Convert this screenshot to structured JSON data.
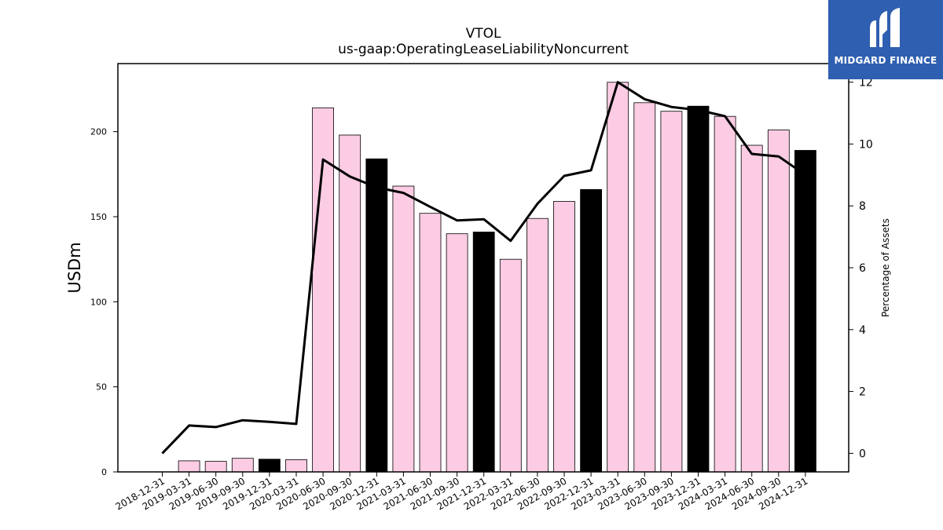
{
  "chart_data": {
    "type": "bar",
    "title": "VTOL",
    "subtitle": "us-gaap:OperatingLeaseLiabilityNoncurrent",
    "ylabel": "USDm",
    "y2label": "Percentage of Assets",
    "ylim": [
      0,
      240
    ],
    "y2lim": [
      -0.6,
      12.6
    ],
    "yticks": [
      0,
      50,
      100,
      150,
      200
    ],
    "y2ticks": [
      0,
      2,
      4,
      6,
      8,
      10,
      12
    ],
    "categories": [
      "2018-12-31",
      "2019-03-31",
      "2019-06-30",
      "2019-09-30",
      "2019-12-31",
      "2020-03-31",
      "2020-06-30",
      "2020-09-30",
      "2020-12-31",
      "2021-03-31",
      "2021-06-30",
      "2021-09-30",
      "2021-12-31",
      "2022-03-31",
      "2022-06-30",
      "2022-09-30",
      "2022-12-31",
      "2023-03-31",
      "2023-06-30",
      "2023-09-30",
      "2023-12-31",
      "2024-03-31",
      "2024-06-30",
      "2024-09-30",
      "2024-12-31"
    ],
    "series": [
      {
        "kind": "bar",
        "values": [
          0,
          6.5,
          6.2,
          8.0,
          7.5,
          7.2,
          214,
          198,
          184,
          168,
          152,
          140,
          141,
          125,
          149,
          159,
          166,
          229,
          217,
          212,
          215,
          209,
          192,
          201,
          189
        ],
        "year_end_color": "#000000",
        "quarter_color": "#fbcce3"
      },
      {
        "kind": "line",
        "axis": "right",
        "color": "#000000",
        "values": [
          0.0,
          0.9,
          0.85,
          1.07,
          1.02,
          0.95,
          9.5,
          8.95,
          8.6,
          8.42,
          7.97,
          7.53,
          7.57,
          6.87,
          8.07,
          8.97,
          9.15,
          12.0,
          11.45,
          11.2,
          11.1,
          10.9,
          9.68,
          9.6,
          9.0
        ]
      }
    ],
    "grid": false
  },
  "logo": {
    "text": "MIDGARD FINANCE"
  }
}
